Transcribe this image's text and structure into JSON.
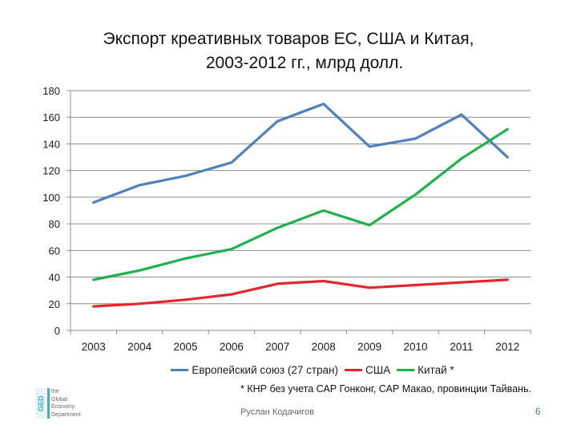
{
  "title_line1": "Экспорт креативных товаров ЕС, США и Китая,",
  "title_line2": "2003-2012 гг., млрд долл.",
  "footnote": "* КНР без учета САР Гонконг, САР Макао, провинции Тайвань.",
  "author": "Руслан Кодачигов",
  "page_number": "6",
  "logo": {
    "mark": "GED",
    "lines": [
      "the",
      "Global",
      "Economy",
      "Department"
    ]
  },
  "chart_data": {
    "type": "line",
    "categories": [
      "2003",
      "2004",
      "2005",
      "2006",
      "2007",
      "2008",
      "2009",
      "2010",
      "2011",
      "2012"
    ],
    "ylim": [
      0,
      180
    ],
    "yticks": [
      0,
      20,
      40,
      60,
      80,
      100,
      120,
      140,
      160,
      180
    ],
    "grid": true,
    "legend_position": "bottom",
    "series": [
      {
        "name": "Европейский союз (27 стран)",
        "color": "#4f81bd",
        "values": [
          96,
          109,
          116,
          126,
          157,
          170,
          138,
          144,
          162,
          130
        ]
      },
      {
        "name": "США",
        "color": "#e3262e",
        "values": [
          18,
          20,
          23,
          27,
          35,
          37,
          32,
          34,
          36,
          38
        ]
      },
      {
        "name": "Китай *",
        "color": "#1fb14c",
        "values": [
          38,
          45,
          54,
          61,
          77,
          90,
          79,
          102,
          129,
          151
        ]
      }
    ]
  }
}
